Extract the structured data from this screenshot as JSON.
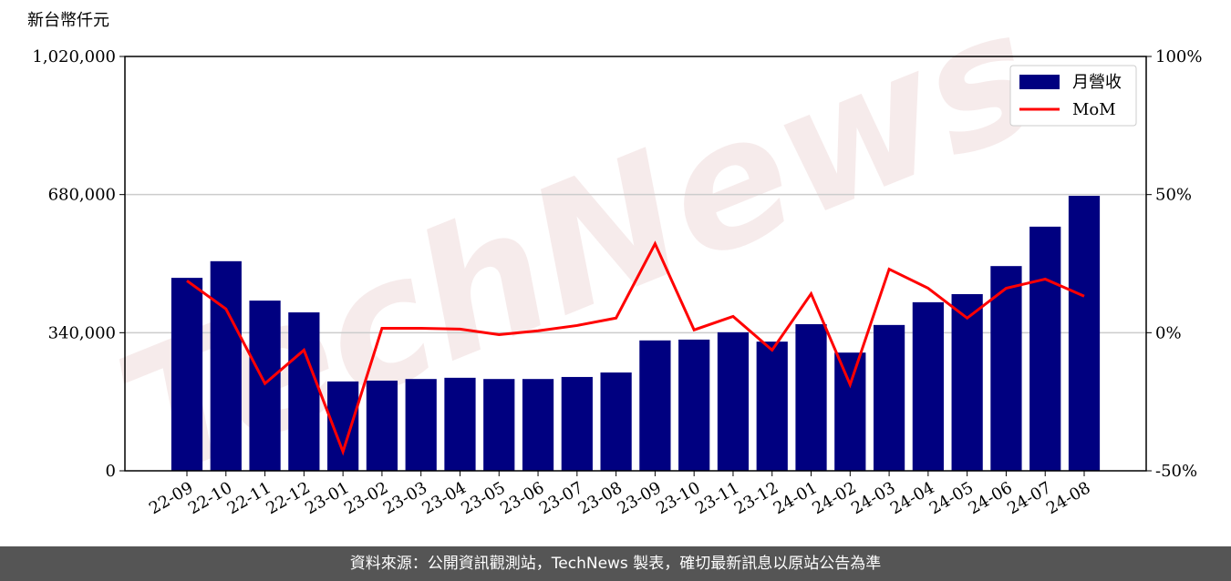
{
  "chart_data": {
    "type": "bar",
    "y_axis_label": "新台幣仟元",
    "watermark": "TechNews",
    "categories": [
      "22-09",
      "22-10",
      "22-11",
      "22-12",
      "23-01",
      "23-02",
      "23-03",
      "23-04",
      "23-05",
      "23-06",
      "23-07",
      "23-08",
      "23-09",
      "23-10",
      "23-11",
      "23-12",
      "24-01",
      "24-02",
      "24-03",
      "24-04",
      "24-05",
      "24-06",
      "24-07",
      "24-08"
    ],
    "series": [
      {
        "name": "月營收",
        "type": "bar",
        "color": "#000080",
        "values": [
          475000,
          516000,
          419000,
          390000,
          220000,
          222000,
          226000,
          229000,
          226000,
          226000,
          231000,
          242000,
          321000,
          323000,
          341000,
          318000,
          361000,
          291000,
          359000,
          415000,
          435000,
          504000,
          601000,
          677000
        ]
      },
      {
        "name": "MoM",
        "type": "line",
        "axis": "y2",
        "color": "#ff0000",
        "values": [
          18.8,
          8.6,
          -18.4,
          -6.3,
          -43.1,
          1.6,
          1.6,
          1.3,
          -0.7,
          0.7,
          2.6,
          5.3,
          32.2,
          1.0,
          5.9,
          -6.3,
          14.1,
          -18.8,
          23.0,
          16.1,
          5.3,
          16.1,
          19.4,
          13.2
        ]
      }
    ],
    "ylim": [
      0,
      1020000
    ],
    "yticks": [
      0,
      {
        "value": 340000,
        "label": "340,000"
      },
      {
        "value": 680000,
        "label": "680,000"
      },
      {
        "value": 1020000,
        "label": "1,020,000"
      }
    ],
    "y2lim": [
      -50,
      100
    ],
    "y2ticks": [
      {
        "value": -50,
        "label": "-50%"
      },
      {
        "value": 0,
        "label": "0%"
      },
      {
        "value": 50,
        "label": "50%"
      },
      {
        "value": 100,
        "label": "100%"
      }
    ],
    "grid": true,
    "legend": "upper right"
  },
  "footer": "資料來源：公開資訊觀測站，TechNews 製表，確切最新訊息以原站公告為準"
}
